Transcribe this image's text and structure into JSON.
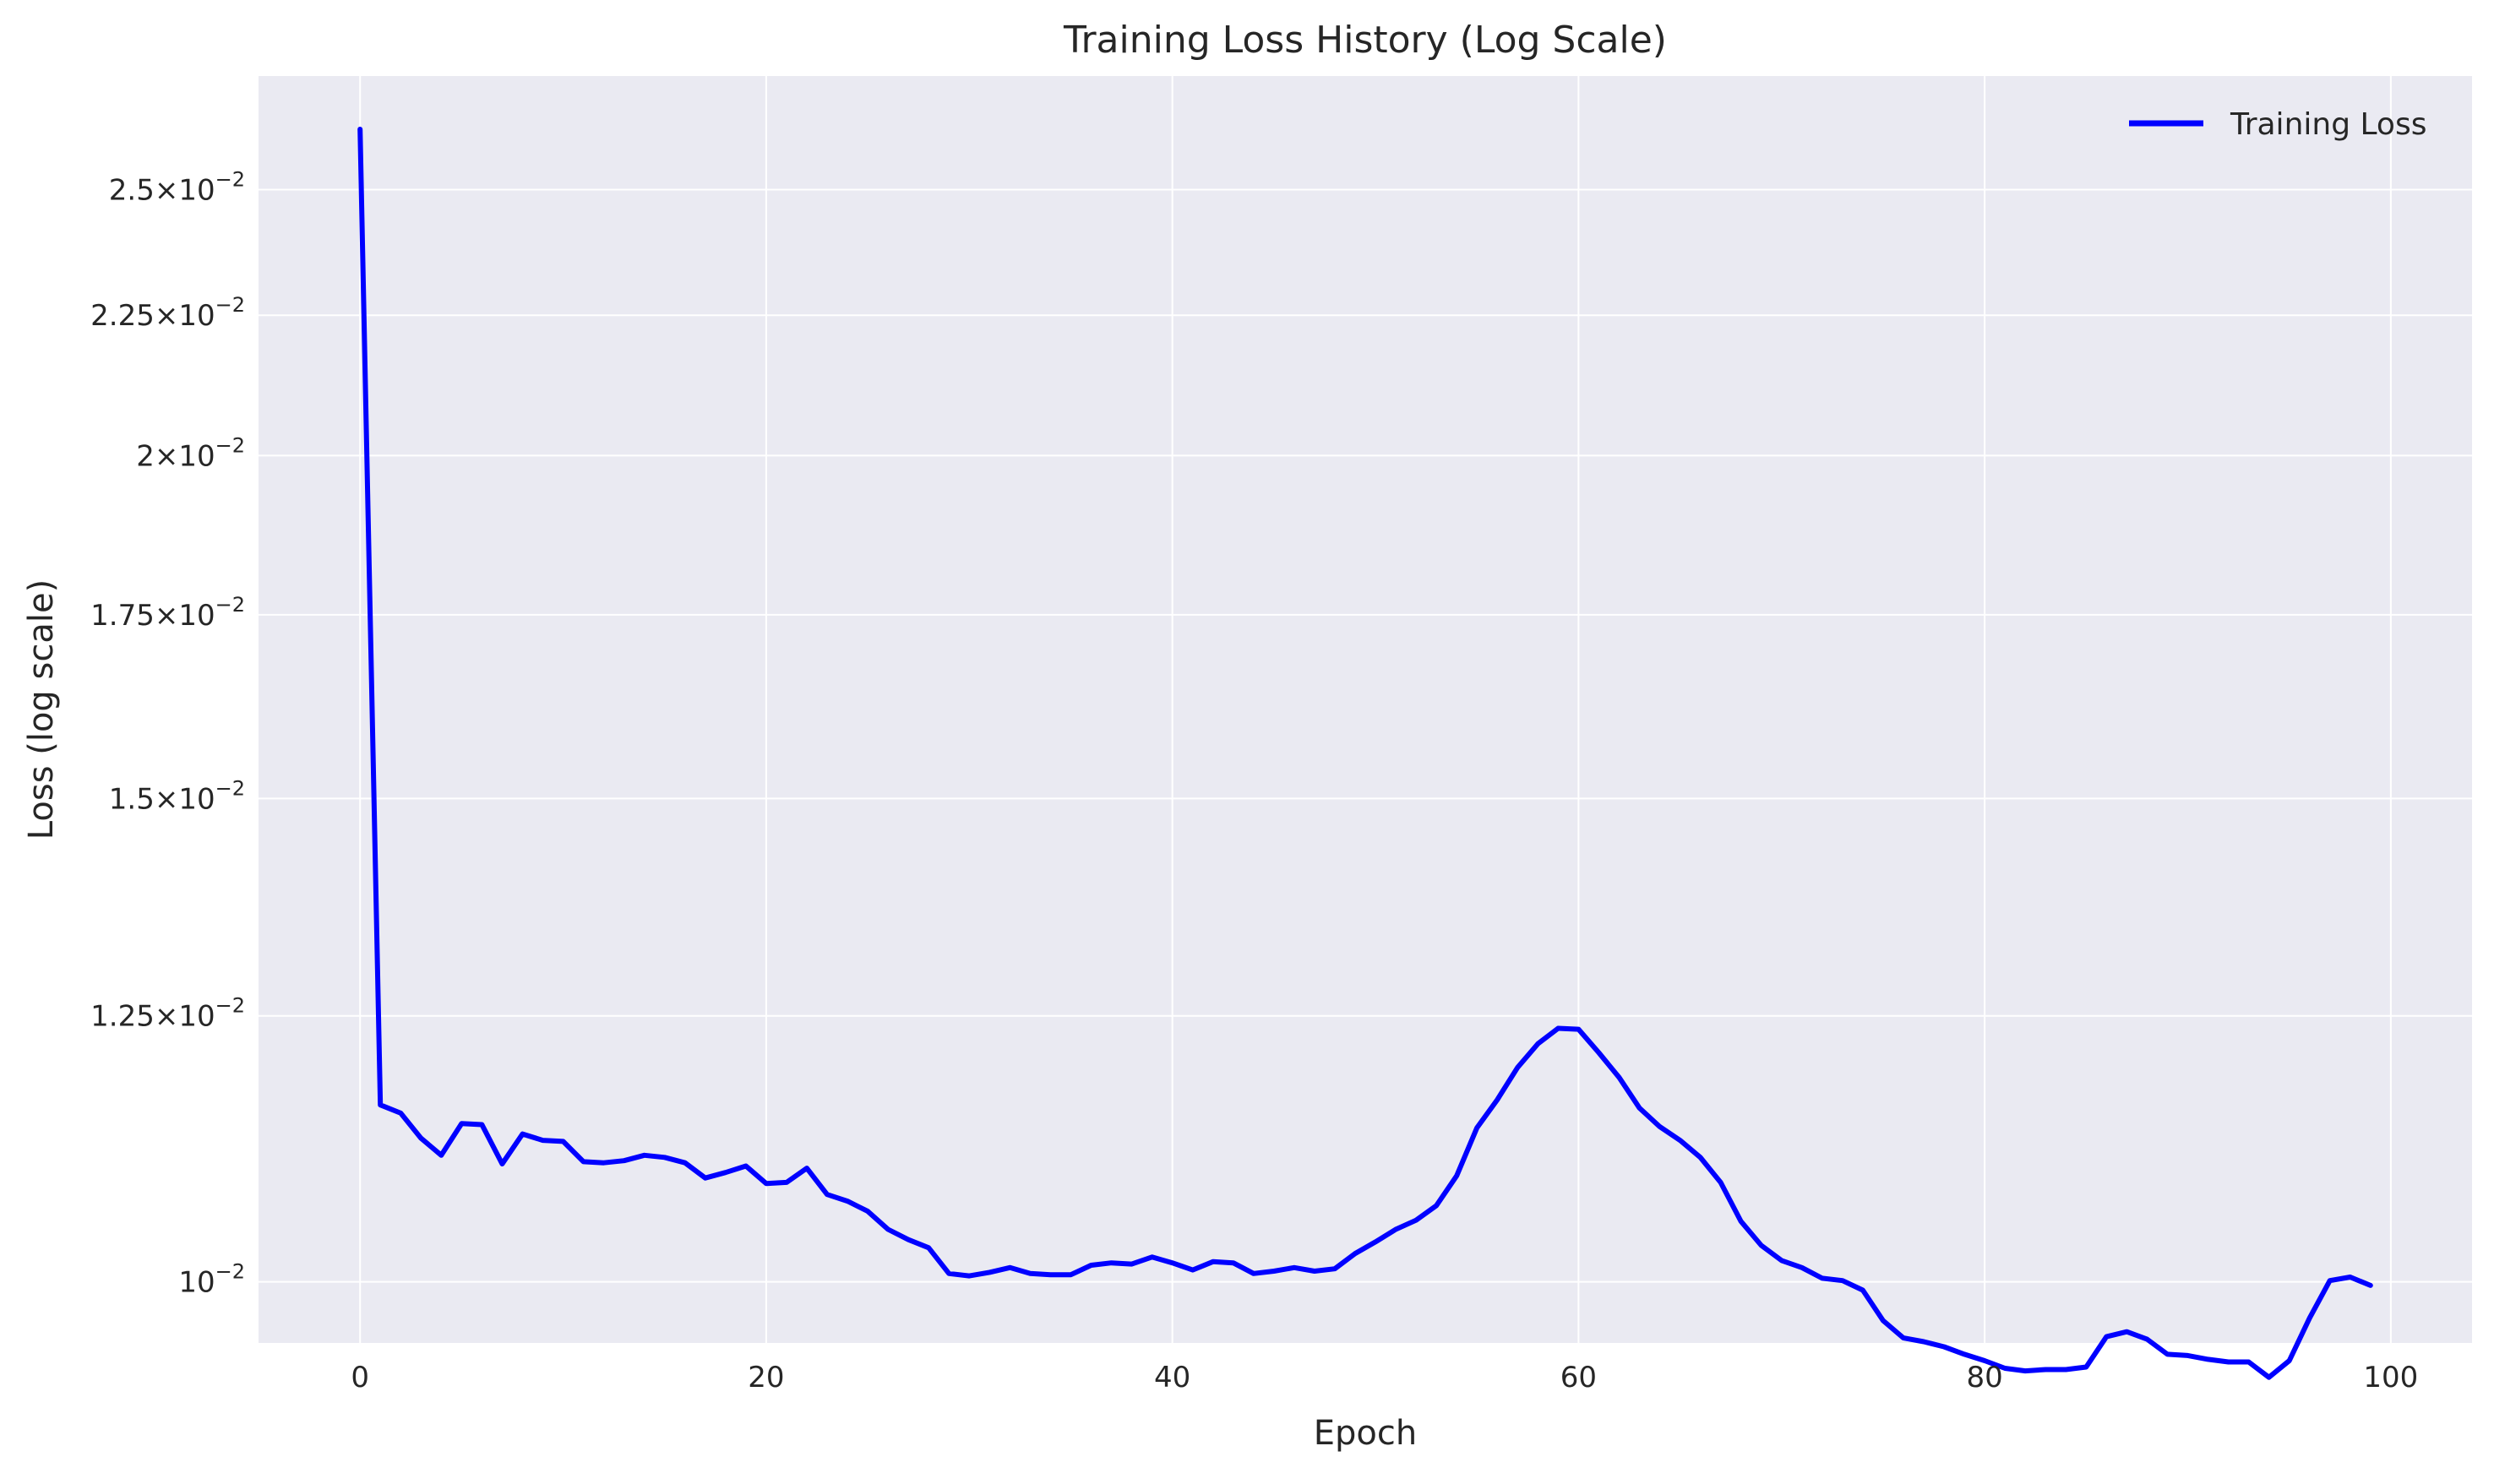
{
  "chart_data": {
    "type": "line",
    "title": "Training Loss History (Log Scale)",
    "xlabel": "Epoch",
    "ylabel": "Loss (log scale)",
    "yscale": "log",
    "xlim": [
      -5,
      104
    ],
    "ylim": [
      0.0095,
      0.0275
    ],
    "grid": true,
    "legend_position": "top-right",
    "x_ticks": [
      0,
      20,
      40,
      60,
      80,
      100
    ],
    "x_tick_labels": [
      "0",
      "20",
      "40",
      "60",
      "80",
      "100"
    ],
    "y_ticks": [
      {
        "value": 0.025,
        "mant": "2.5",
        "exp": "−2"
      },
      {
        "value": 0.0225,
        "mant": "2.25",
        "exp": "−2"
      },
      {
        "value": 0.02,
        "mant": "2",
        "exp": "−2"
      },
      {
        "value": 0.0175,
        "mant": "1.75",
        "exp": "−2"
      },
      {
        "value": 0.015,
        "mant": "1.5",
        "exp": "−2"
      },
      {
        "value": 0.0125,
        "mant": "1.25",
        "exp": "−2"
      },
      {
        "value": 0.01,
        "mant": "10",
        "exp": "−2"
      }
    ],
    "series": [
      {
        "name": "Training Loss",
        "color": "#0000ff",
        "x": [
          0,
          1,
          2,
          3,
          4,
          5,
          6,
          7,
          8,
          9,
          10,
          11,
          12,
          13,
          14,
          15,
          16,
          17,
          18,
          19,
          20,
          21,
          22,
          23,
          24,
          25,
          26,
          27,
          28,
          29,
          30,
          31,
          32,
          33,
          34,
          35,
          36,
          37,
          38,
          39,
          40,
          41,
          42,
          43,
          44,
          45,
          46,
          47,
          48,
          49,
          50,
          51,
          52,
          53,
          54,
          55,
          56,
          57,
          58,
          59,
          60,
          61,
          62,
          63,
          64,
          65,
          66,
          67,
          68,
          69,
          70,
          71,
          72,
          73,
          74,
          75,
          76,
          77,
          78,
          79,
          80,
          81,
          82,
          83,
          84,
          85,
          86,
          87,
          88,
          89,
          90,
          91,
          92,
          93,
          94,
          95,
          96,
          97,
          98,
          99
        ],
        "values": [
          0.0263,
          0.0116,
          0.01152,
          0.01128,
          0.01112,
          0.01142,
          0.01141,
          0.01104,
          0.01132,
          0.01126,
          0.01125,
          0.01106,
          0.01105,
          0.01107,
          0.01112,
          0.0111,
          0.01105,
          0.01091,
          0.01096,
          0.01102,
          0.01086,
          0.01087,
          0.011,
          0.01076,
          0.0107,
          0.01061,
          0.01045,
          0.01036,
          0.01029,
          0.01007,
          0.01005,
          0.01008,
          0.01012,
          0.01007,
          0.01006,
          0.01006,
          0.01014,
          0.01016,
          0.01015,
          0.01021,
          0.01016,
          0.0101,
          0.01017,
          0.01016,
          0.01007,
          0.01009,
          0.01012,
          0.01009,
          0.01011,
          0.01024,
          0.01034,
          0.01045,
          0.01053,
          0.01066,
          0.01093,
          0.01138,
          0.01165,
          0.01197,
          0.01221,
          0.01237,
          0.01236,
          0.01212,
          0.01187,
          0.01157,
          0.01139,
          0.01126,
          0.0111,
          0.01087,
          0.01052,
          0.01031,
          0.01018,
          0.01012,
          0.01003,
          0.01001,
          0.00993,
          0.00968,
          0.00954,
          0.00951,
          0.00947,
          0.00941,
          0.00936,
          0.0093,
          0.00928,
          0.00929,
          0.00929,
          0.00931,
          0.00955,
          0.00959,
          0.00953,
          0.00941,
          0.0094,
          0.00937,
          0.00935,
          0.00935,
          0.00923,
          0.00936,
          0.0097,
          0.01001,
          0.01004,
          0.00997
        ]
      }
    ]
  }
}
